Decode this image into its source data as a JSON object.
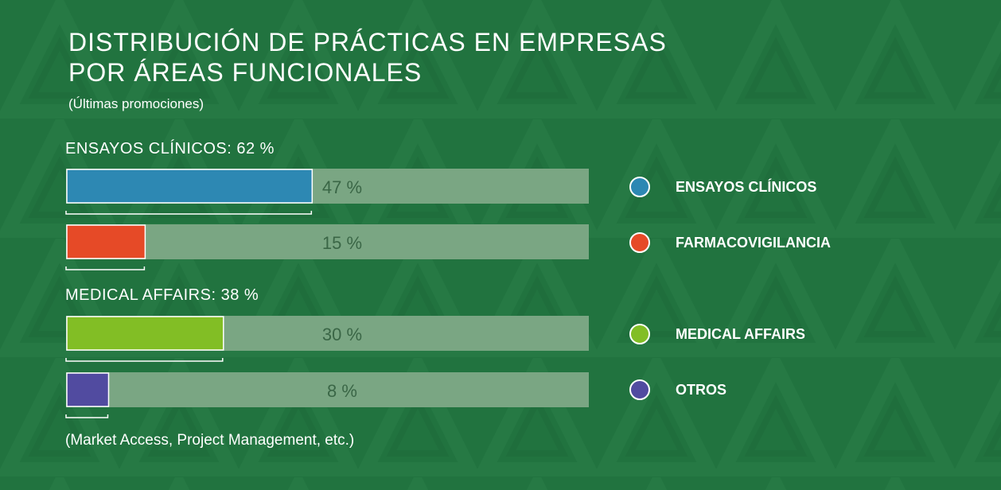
{
  "chart_data": {
    "type": "bar",
    "orientation": "horizontal",
    "title": [
      "DISTRIBUCIÓN DE PRÁCTICAS EN EMPRESAS",
      "POR ÁREAS FUNCIONALES"
    ],
    "subtitle": "(Últimas promociones)",
    "xlim": [
      0,
      100
    ],
    "grid": false,
    "legend_position": "right",
    "groups": [
      {
        "label": "ENSAYOS CLÍNICOS: 62 %",
        "bars": [
          0,
          1
        ]
      },
      {
        "label": "MEDICAL AFFAIRS: 38 %",
        "bars": [
          2,
          3
        ]
      }
    ],
    "categories": [
      "ENSAYOS CLÍNICOS",
      "FARMACOVIGILANCIA",
      "MEDICAL AFFAIRS",
      "OTROS"
    ],
    "values": [
      47,
      15,
      30,
      8
    ],
    "value_labels": [
      "47 %",
      "15 %",
      "30 %",
      "8 %"
    ],
    "colors": [
      "#2d88b3",
      "#e64a27",
      "#82be25",
      "#514ba0"
    ],
    "track_color": "#7aa683",
    "value_label_color": "#3a6646",
    "legend": [
      {
        "label": "ENSAYOS CLÍNICOS",
        "color": "#2d88b3"
      },
      {
        "label": "FARMACOVIGILANCIA",
        "color": "#e64a27"
      },
      {
        "label": "MEDICAL AFFAIRS",
        "color": "#82be25"
      },
      {
        "label": "OTROS",
        "color": "#514ba0"
      }
    ],
    "footnote": "(Market Access, Project Management, etc.)"
  }
}
